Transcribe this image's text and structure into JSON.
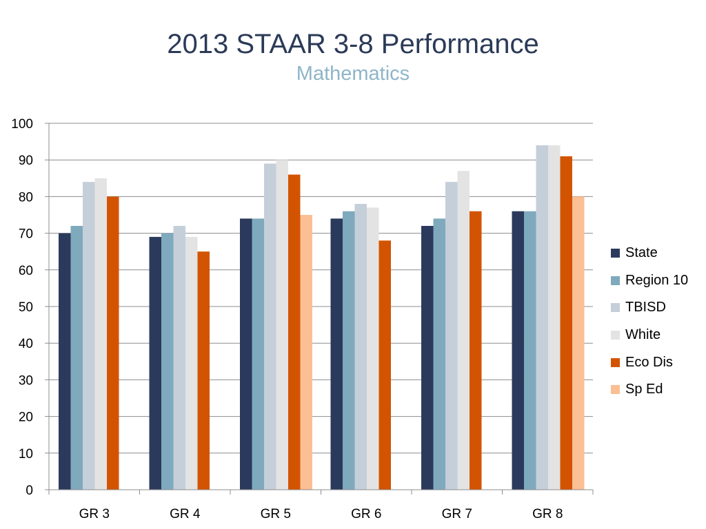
{
  "title": "2013 STAAR 3-8 Performance",
  "subtitle": "Mathematics",
  "chart_data": {
    "type": "bar",
    "categories": [
      "GR 3",
      "GR 4",
      "GR 5",
      "GR 6",
      "GR 7",
      "GR 8"
    ],
    "ylim": [
      0,
      100
    ],
    "yticks": [
      0,
      10,
      20,
      30,
      40,
      50,
      60,
      70,
      80,
      90,
      100
    ],
    "grid": true,
    "legend_position": "right",
    "series": [
      {
        "name": "State",
        "color": "#2b3a5c",
        "values": [
          70,
          69,
          74,
          74,
          72,
          76
        ]
      },
      {
        "name": "Region 10",
        "color": "#7fa9bd",
        "values": [
          72,
          70,
          74,
          76,
          74,
          76
        ]
      },
      {
        "name": "TBISD",
        "color": "#c5cfda",
        "values": [
          84,
          72,
          89,
          78,
          84,
          94
        ]
      },
      {
        "name": "White",
        "color": "#e3e3e3",
        "values": [
          85,
          69,
          90,
          77,
          87,
          94
        ]
      },
      {
        "name": "Eco Dis",
        "color": "#d35400",
        "values": [
          80,
          65,
          86,
          68,
          76,
          91
        ]
      },
      {
        "name": "Sp Ed",
        "color": "#fbbf94",
        "values": [
          null,
          null,
          75,
          null,
          null,
          80
        ]
      }
    ]
  }
}
